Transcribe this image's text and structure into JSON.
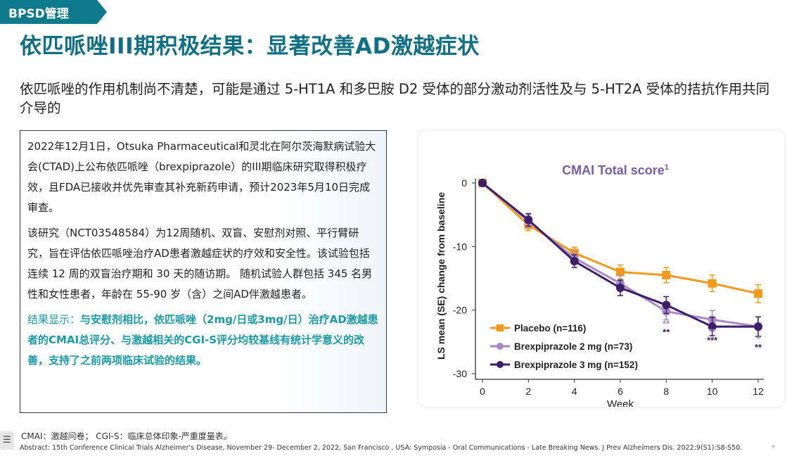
{
  "header": {
    "tag": "BPSD管理",
    "title": "依匹哌唑III期积极结果：显著改善AD激越症状",
    "subtitle": "依匹哌唑的作用机制尚不清楚，可能是通过 5-HT1A 和多巴胺 D2 受体的部分激动剂活性及与 5-HT2A 受体的拮抗作用共同介导的"
  },
  "textbox": {
    "para1": "2022年12月1日，Otsuka Pharmaceutical和灵北在阿尔茨海默病试验大会(CTAD)上公布依匹哌唑（brexpiprazole）的III期临床研究取得积极疗效，且FDA已接收并优先审查其补充新药申请，预计2023年5月10日完成审查。",
    "para2a": "该研究（NCT03548584）为12周随机、双盲、安慰剂对照、平行臂研究，旨在评估依匹哌唑治疗AD患者激越症状的疗效和安全性。",
    "para2b": "该试验包括连续 12 周的双盲治疗期和 30 天的随访期。 随机试验人群包括 345 名男性和女性患者，年龄在 55-90 岁（含）之间AD伴激越患者。",
    "result_prefix": "结果显示：",
    "result_highlight": "与安慰剂相比，依匹哌唑（2mg/日或3mg/日）治疗AD激越患者的CMAI总评分、与激越相关的CGI-S评分均较基线有统计学意义的改善，支持了之前两项临床试验的结果。"
  },
  "chart_data": {
    "type": "line",
    "title": "CMAI Total score",
    "title_superscript": "1",
    "xlabel": "Week",
    "ylabel": "LS mean (SE) change from baseline",
    "x": [
      0,
      2,
      4,
      6,
      8,
      10,
      12
    ],
    "x_ticks": [
      "0",
      "2",
      "4",
      "6",
      "8",
      "10",
      "12"
    ],
    "y_ticks": [
      "0",
      "-10",
      "-20",
      "-30"
    ],
    "ylim": [
      -30,
      0
    ],
    "grid": false,
    "legend_position": "bottom-left",
    "series": [
      {
        "name": "Placebo (n=116)",
        "color": "#f39a1e",
        "marker": "square",
        "values": [
          0,
          -6.6,
          -11,
          -14,
          -14.5,
          -15.8,
          -17.4
        ]
      },
      {
        "name": "Brexpiprazole 2 mg (n=73)",
        "color": "#a98ac6",
        "marker": "circle",
        "values": [
          0,
          -6.0,
          -11.8,
          -15.8,
          -20.2,
          -21.5,
          -22.6
        ]
      },
      {
        "name": "Brexpiprazole 3 mg (n=152)",
        "color": "#3d1e6d",
        "marker": "circle",
        "values": [
          0,
          -5.8,
          -12.3,
          -16.5,
          -19.2,
          -22.6,
          -22.6
        ]
      }
    ],
    "significance": [
      {
        "x": 8,
        "top": "**",
        "bottom": "**"
      },
      {
        "x": 10,
        "top": "**",
        "bottom": "***"
      },
      {
        "x": 12,
        "top": "*",
        "bottom": "**"
      }
    ]
  },
  "footer": {
    "abbrev": "CMAI：激越问卷；   CGI-S：临床总体印象-严重度量表。",
    "source": "Abstract: 15th Conference Clinical Trials Alzheimer's Disease, November 29- December 2, 2022, San Francisco , USA: Symposia - Oral Communications - Late Breaking News. J Prev Alzheimers Dis. 2022;9(S1):S8-S50."
  },
  "colors": {
    "brand": "#0f7a8c",
    "title": "#0e6f85",
    "result_text": "#1a9aa8",
    "chart_title": "#7b5ba6"
  }
}
